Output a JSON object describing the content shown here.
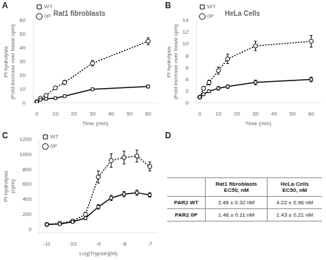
{
  "chart_data": [
    {
      "type": "line",
      "title": "Rat1 fibroblasts",
      "annotations": [
        "A"
      ],
      "xlabel": "Time (min)",
      "ylabel": "PI hydrolysis\n(Fold increase over basal cpm)",
      "xlim": [
        -2,
        65
      ],
      "xticks": [
        0,
        10,
        20,
        30,
        40,
        50,
        60
      ],
      "ylim": [
        0,
        60
      ],
      "yticks": [
        0,
        10,
        20,
        30,
        40,
        50,
        60
      ],
      "grid": false,
      "legend": "upper left",
      "x": [
        0,
        2,
        5,
        10,
        15,
        30,
        60
      ],
      "series": [
        {
          "name": "WT",
          "color": "black",
          "marker": "square",
          "line_style": "solid",
          "values": [
            1.0,
            2.5,
            3.0,
            3.5,
            5.0,
            10.0,
            12.0
          ],
          "errors": [
            0.3,
            0.5,
            0.4,
            0.5,
            0.6,
            0.8,
            1.0
          ]
        },
        {
          "name": "0P",
          "color": "black",
          "marker": "circle",
          "line_style": "dotted",
          "values": [
            1.0,
            3.5,
            5.5,
            11.0,
            15.0,
            29.0,
            45.0
          ],
          "errors": [
            0.3,
            0.6,
            0.8,
            1.2,
            1.5,
            2.0,
            2.5
          ]
        }
      ]
    },
    {
      "type": "line",
      "title": "HeLa Cells",
      "annotations": [
        "B"
      ],
      "xlabel": "Time (min)",
      "ylabel": "PI hydrolysis\n(Fold increase over basal cpm)",
      "xlim": [
        -2,
        65
      ],
      "xticks": [
        0,
        10,
        20,
        30,
        40,
        50,
        60
      ],
      "ylim": [
        0,
        14
      ],
      "yticks": [
        0,
        2,
        4,
        6,
        8,
        10,
        12,
        14
      ],
      "grid": false,
      "legend": "upper left",
      "x": [
        0,
        2,
        5,
        10,
        15,
        30,
        60
      ],
      "series": [
        {
          "name": "WT",
          "color": "black",
          "marker": "square",
          "line_style": "solid",
          "values": [
            1.0,
            1.5,
            2.0,
            2.5,
            2.8,
            3.5,
            4.0
          ],
          "errors": [
            0.2,
            0.2,
            0.2,
            0.3,
            0.3,
            0.4,
            0.4
          ]
        },
        {
          "name": "0P",
          "color": "black",
          "marker": "circle",
          "line_style": "dotted",
          "values": [
            1.0,
            2.5,
            3.5,
            5.5,
            7.5,
            9.7,
            10.5
          ],
          "errors": [
            0.2,
            0.3,
            0.4,
            0.6,
            0.8,
            0.8,
            1.0
          ]
        }
      ]
    },
    {
      "type": "line",
      "annotations": [
        "C"
      ],
      "xlabel": "Log[Trypsin](M)",
      "ylabel": "PI hydrolysis\n(cpm)",
      "xlim": [
        -11.3,
        -6.7
      ],
      "xticks": [
        -11,
        -10,
        -9,
        -8,
        -7
      ],
      "ylim": [
        -50,
        1200
      ],
      "yticks": [
        0,
        200,
        400,
        600,
        800,
        1000,
        1200
      ],
      "grid": false,
      "legend": "upper left",
      "x": [
        -11,
        -10.5,
        -10,
        -9.5,
        -9,
        -8.5,
        -8,
        -7.5,
        -7
      ],
      "series": [
        {
          "name": "WT",
          "color": "black",
          "marker": "square",
          "line_style": "solid",
          "values": [
            65,
            70,
            100,
            150,
            300,
            420,
            470,
            490,
            460
          ],
          "errors": [
            10,
            10,
            15,
            20,
            30,
            35,
            35,
            35,
            30
          ]
        },
        {
          "name": "0P",
          "color": "black",
          "marker": "circle",
          "line_style": "dotted",
          "values": [
            65,
            80,
            110,
            200,
            700,
            920,
            960,
            980,
            840
          ],
          "errors": [
            10,
            15,
            20,
            30,
            80,
            90,
            85,
            80,
            60
          ]
        }
      ]
    },
    {
      "type": "table",
      "annotations": [
        "D"
      ],
      "column_headers": [
        "Rat1 fibroblasts\nEC50, nM",
        "HeLa Cells\nEC50, nM"
      ],
      "row_headers": [
        "PAR2 WT",
        "PAR2 0P"
      ],
      "cells": [
        [
          "2.46 ± 0.32 nM",
          "4.22 ± 0.96 nM"
        ],
        [
          "1.46 ± 0.11 nM",
          "1.43 ± 0.21 nM"
        ]
      ]
    }
  ]
}
